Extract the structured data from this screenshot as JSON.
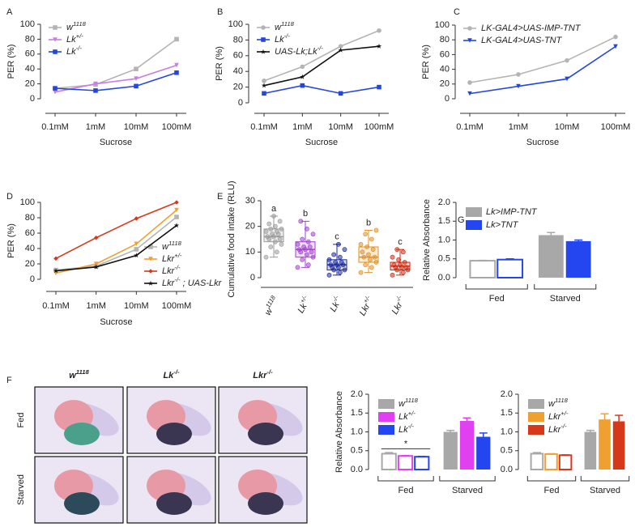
{
  "chart_data": [
    {
      "type": "line",
      "panel": "A",
      "xlabel": "Sucrose",
      "ylabel": "PER (%)",
      "categories": [
        "0.1mM",
        "1mM",
        "10mM",
        "100mM"
      ],
      "ylim": [
        0,
        100
      ],
      "yticks": [
        0,
        20,
        40,
        60,
        80,
        100
      ],
      "legend": "upper left",
      "series": [
        {
          "name": "w1118",
          "color": "#b4b4b4",
          "marker": "square",
          "values": [
            14,
            19,
            40,
            80
          ]
        },
        {
          "name": "Lk+/-",
          "color": "#c77ee6",
          "marker": "triangle",
          "values": [
            9,
            20,
            27,
            45
          ]
        },
        {
          "name": "Lk-/-",
          "color": "#2446e0",
          "marker": "square",
          "values": [
            14,
            11,
            17,
            35
          ]
        }
      ]
    },
    {
      "type": "line",
      "panel": "B",
      "xlabel": "Sucrose",
      "ylabel": "PER (%)",
      "categories": [
        "0.1mM",
        "1mM",
        "10mM",
        "100mM"
      ],
      "ylim": [
        0,
        100
      ],
      "yticks": [
        0,
        20,
        40,
        60,
        80,
        100
      ],
      "legend": "upper left",
      "series": [
        {
          "name": "w1118",
          "color": "#b4b4b4",
          "marker": "circle",
          "values": [
            28,
            46,
            72,
            92
          ]
        },
        {
          "name": "Lk-/-",
          "color": "#2446e0",
          "marker": "square",
          "values": [
            12,
            22,
            12,
            20
          ]
        },
        {
          "name": "UAS-Lk;Lk-/-",
          "color": "#111111",
          "marker": "star",
          "values": [
            22,
            33,
            67,
            72
          ]
        }
      ]
    },
    {
      "type": "line",
      "panel": "C",
      "xlabel": "Sucrose",
      "ylabel": "PER (%)",
      "categories": [
        "0.1mM",
        "1mM",
        "10mM",
        "100mM"
      ],
      "ylim": [
        0,
        100
      ],
      "yticks": [
        0,
        20,
        40,
        60,
        80,
        100
      ],
      "legend": "upper left",
      "series": [
        {
          "name": "LK-GAL4>UAS-IMP-TNT",
          "color": "#b4b4b4",
          "marker": "circle",
          "values": [
            22,
            33,
            52,
            84
          ]
        },
        {
          "name": "LK-GAL4>UAS-TNT",
          "color": "#2446e0",
          "marker": "triangle",
          "values": [
            7,
            17,
            27,
            71
          ]
        }
      ]
    },
    {
      "type": "line",
      "panel": "D",
      "xlabel": "Sucrose",
      "ylabel": "PER (%)",
      "categories": [
        "0.1mM",
        "1mM",
        "10mM",
        "100mM"
      ],
      "ylim": [
        0,
        100
      ],
      "yticks": [
        0,
        20,
        40,
        60,
        80,
        100
      ],
      "legend": "lower right",
      "series": [
        {
          "name": "w1118",
          "color": "#b4b4b4",
          "marker": "square",
          "values": [
            12,
            17,
            39,
            81
          ]
        },
        {
          "name": "Lkr+/-",
          "color": "#f0a030",
          "marker": "triangle",
          "values": [
            8,
            20,
            46,
            90
          ]
        },
        {
          "name": "Lkr-/-",
          "color": "#d8381a",
          "marker": "diamond",
          "values": [
            27,
            54,
            79,
            100
          ]
        },
        {
          "name": "Lkr-/- ; UAS-Lkr",
          "color": "#111111",
          "marker": "star",
          "values": [
            11,
            16,
            31,
            70
          ]
        }
      ]
    },
    {
      "type": "box",
      "panel": "E",
      "ylabel": "Cumulative food intake (RLU)",
      "categories": [
        "w1118",
        "Lk+/-",
        "Lk-/-",
        "Lkr+/-",
        "Lkr-/-"
      ],
      "ylim": [
        0,
        30
      ],
      "yticks": [
        0,
        10,
        20,
        30
      ],
      "colors": [
        "#9a9a9a",
        "#a040d0",
        "#1a2aa0",
        "#e09020",
        "#d02810"
      ],
      "letters": [
        "a",
        "b",
        "c",
        "b",
        "c"
      ],
      "boxes": [
        {
          "min": 8,
          "q1": 14,
          "median": 16,
          "q3": 19,
          "max": 24
        },
        {
          "min": 4,
          "q1": 8,
          "median": 11,
          "q3": 14,
          "max": 22
        },
        {
          "min": 1,
          "q1": 3,
          "median": 5,
          "q3": 7,
          "max": 13
        },
        {
          "min": 2,
          "q1": 6,
          "median": 8,
          "q3": 12,
          "max": 18.5
        },
        {
          "min": 1,
          "q1": 3,
          "median": 4.5,
          "q3": 6,
          "max": 11
        }
      ],
      "points": [
        [
          8,
          10,
          12,
          13,
          14,
          15,
          15,
          16,
          16,
          17,
          17,
          18,
          18,
          19,
          19,
          20,
          21,
          22,
          24
        ],
        [
          4,
          5,
          7,
          8,
          9,
          10,
          10,
          11,
          11,
          12,
          12,
          13,
          14,
          15,
          17,
          19,
          22
        ],
        [
          1,
          2,
          3,
          3,
          4,
          4,
          5,
          5,
          5,
          6,
          6,
          7,
          8,
          9,
          11,
          13
        ],
        [
          2,
          4,
          5,
          6,
          7,
          8,
          8,
          9,
          10,
          11,
          12,
          13,
          15,
          17,
          18.5
        ],
        [
          1,
          2,
          3,
          3,
          4,
          4,
          4,
          5,
          5,
          6,
          7,
          8,
          10,
          11
        ]
      ]
    },
    {
      "type": "bar",
      "panel": "G",
      "ylabel": "Relative  Absorbance",
      "categories": [
        "Fed",
        "Starved"
      ],
      "hollow": [
        true,
        false
      ],
      "legend": "upper left",
      "ylim": [
        0,
        2
      ],
      "yticks": [
        {
          "value": 0,
          "label": "0.0"
        },
        0.5,
        {
          "value": 1,
          "label": "1.0"
        },
        1.5,
        {
          "value": 2,
          "label": "2.0"
        }
      ],
      "series": [
        {
          "name": "Lk>IMP-TNT",
          "color": "#a8a8a8",
          "values": [
            0.45,
            1.13
          ],
          "errors": [
            0.01,
            0.07
          ]
        },
        {
          "name": "Lk>TNT",
          "color": "#2446f0",
          "values": [
            0.48,
            0.97
          ],
          "errors": [
            0.02,
            0.03
          ]
        }
      ]
    },
    {
      "type": "bar",
      "ylabel": "Relative  Absorbance",
      "categories": [
        "Fed",
        "Starved"
      ],
      "hollow": [
        true,
        false
      ],
      "legend": "upper left",
      "annotation": "*",
      "ylim": [
        0,
        2
      ],
      "yticks": [
        {
          "value": 0,
          "label": "0.0"
        },
        0.5,
        {
          "value": 1,
          "label": "1.0"
        },
        1.5,
        {
          "value": 2,
          "label": "2.0"
        }
      ],
      "series": [
        {
          "name": "w1118",
          "color": "#a8a8a8",
          "values": [
            0.42,
            1.0
          ],
          "errors": [
            0.03,
            0.04
          ]
        },
        {
          "name": "Lk+/-",
          "color": "#e040f0",
          "values": [
            0.36,
            1.29
          ],
          "errors": [
            0.01,
            0.08
          ]
        },
        {
          "name": "Lk-/-",
          "color": "#2446f0",
          "values": [
            0.34,
            0.87
          ],
          "errors": [
            0.01,
            0.1
          ]
        }
      ]
    },
    {
      "type": "bar",
      "categories": [
        "Fed",
        "Starved"
      ],
      "hollow": [
        true,
        false
      ],
      "legend": "upper left",
      "ylim": [
        0,
        2
      ],
      "yticks": [
        {
          "value": 0,
          "label": "0.0"
        },
        0.5,
        {
          "value": 1,
          "label": "1.0"
        },
        1.5,
        {
          "value": 2,
          "label": "2.0"
        }
      ],
      "series": [
        {
          "name": "w1118",
          "color": "#a8a8a8",
          "values": [
            0.42,
            1.0
          ],
          "errors": [
            0.03,
            0.04
          ]
        },
        {
          "name": "Lkr+/-",
          "color": "#f0a030",
          "values": [
            0.41,
            1.33
          ],
          "errors": [
            0.01,
            0.15
          ]
        },
        {
          "name": "Lkr-/-",
          "color": "#d8381a",
          "values": [
            0.38,
            1.28
          ],
          "errors": [
            0.01,
            0.16
          ]
        }
      ]
    }
  ],
  "photo_grid": {
    "panel": "F",
    "columns": [
      "w1118",
      "Lk-/-",
      "Lkr-/-"
    ],
    "rows": [
      "Fed",
      "Starved"
    ]
  }
}
